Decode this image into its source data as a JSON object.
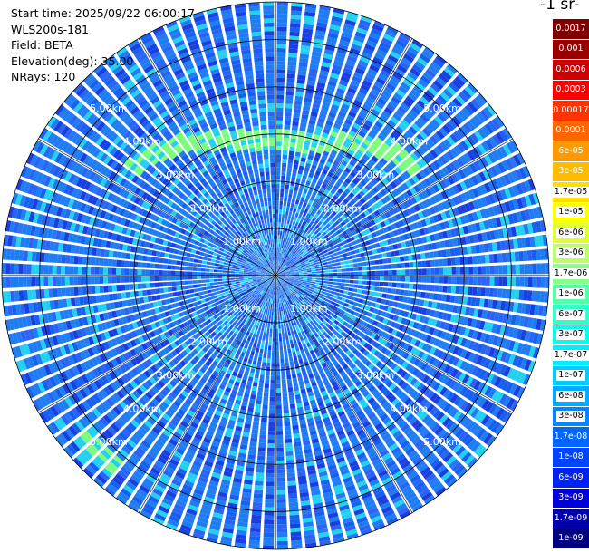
{
  "info": {
    "start_time": "Start time: 2025/09/22 06:00:17",
    "instrument": "WLS200s-181",
    "field": "Field: BETA",
    "elevation": "Elevation(deg): 35.00",
    "nrays": "NRays: 120"
  },
  "colorbar": {
    "title": "-1 sr-",
    "levels": [
      {
        "label": "0.0017",
        "color": "#7f0000",
        "label_color": "#ffffff"
      },
      {
        "label": "0.001",
        "color": "#990000",
        "label_color": "#ffffff"
      },
      {
        "label": "0.0006",
        "color": "#cc0000",
        "label_color": "#ffffff"
      },
      {
        "label": "0.0003",
        "color": "#ff0000",
        "label_color": "#ffffff"
      },
      {
        "label": "0.00017",
        "color": "#ff3300",
        "label_color": "#ffffff"
      },
      {
        "label": "0.0001",
        "color": "#ff6600",
        "label_color": "#ffffff"
      },
      {
        "label": "6e-05",
        "color": "#ff9900",
        "label_color": "#ffffff"
      },
      {
        "label": "3e-05",
        "color": "#ffbb00",
        "label_color": "#ffffff"
      },
      {
        "label": "1.7e-05",
        "color": "#ffdd00",
        "label_color": "#000000"
      },
      {
        "label": "1e-05",
        "color": "#ffff00",
        "label_color": "#000000"
      },
      {
        "label": "6e-06",
        "color": "#ddff33",
        "label_color": "#000000"
      },
      {
        "label": "3e-06",
        "color": "#bbff66",
        "label_color": "#000000"
      },
      {
        "label": "1.7e-06",
        "color": "#88ff88",
        "label_color": "#000000"
      },
      {
        "label": "1e-06",
        "color": "#55ffaa",
        "label_color": "#000000"
      },
      {
        "label": "6e-07",
        "color": "#33ffcc",
        "label_color": "#000000"
      },
      {
        "label": "3e-07",
        "color": "#00ffee",
        "label_color": "#000000"
      },
      {
        "label": "1.7e-07",
        "color": "#00eeff",
        "label_color": "#000000"
      },
      {
        "label": "1e-07",
        "color": "#00ccff",
        "label_color": "#000000"
      },
      {
        "label": "6e-08",
        "color": "#00aaff",
        "label_color": "#000000"
      },
      {
        "label": "3e-08",
        "color": "#0088ff",
        "label_color": "#000000"
      },
      {
        "label": "1.7e-08",
        "color": "#0066ff",
        "label_color": "#ffffff"
      },
      {
        "label": "1e-08",
        "color": "#0044ff",
        "label_color": "#ffffff"
      },
      {
        "label": "6e-09",
        "color": "#0022ee",
        "label_color": "#ffffff"
      },
      {
        "label": "3e-09",
        "color": "#0000dd",
        "label_color": "#ffffff"
      },
      {
        "label": "1.7e-09",
        "color": "#0000aa",
        "label_color": "#ffffff"
      },
      {
        "label": "1e-09",
        "color": "#000080",
        "label_color": "#ffffff"
      }
    ]
  },
  "chart_data": {
    "type": "heatmap",
    "projection": "polar-ppi",
    "max_range_km": 5.8,
    "range_rings_km": [
      1,
      2,
      3,
      4,
      5
    ],
    "ring_labels": [
      "1.00km",
      "2.00km",
      "3.00km",
      "4.00km",
      "5.00km"
    ],
    "azimuth_step_deg": 3,
    "background_level": "3e-08",
    "features": [
      {
        "description": "high-backscatter arc",
        "level": "3e-07",
        "azimuth_deg_range": [
          305,
          55
        ],
        "range_km_range": [
          2.8,
          4.3
        ]
      },
      {
        "description": "high-backscatter patch",
        "level": "1.7e-07",
        "azimuth_deg_range": [
          220,
          232
        ],
        "range_km_range": [
          5.0,
          5.5
        ]
      }
    ],
    "colors": {
      "background": "#1f7cf2",
      "high": "#7cfc7c",
      "mid": "#23d0f0",
      "low": "#1a3fe0",
      "grid": "#000000",
      "ray_separator": "#ffffff"
    }
  }
}
